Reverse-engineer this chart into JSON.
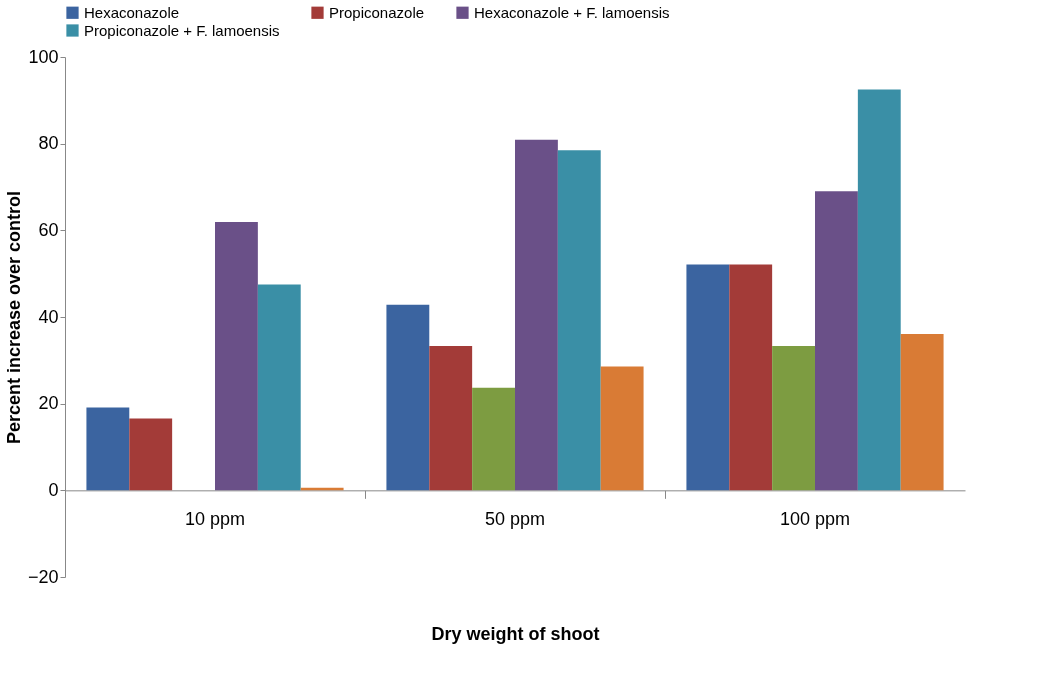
{
  "chart_data": {
    "type": "bar",
    "xlabel": "Dry weight of shoot",
    "ylabel": "Percent increase over control",
    "categories": [
      "10 ppm",
      "50 ppm",
      "100 ppm"
    ],
    "series": [
      {
        "name": "Hexaconazole",
        "color": "#3b64a0",
        "values": [
          19.1,
          42.8,
          52.1
        ]
      },
      {
        "name": "Propiconazole",
        "color": "#a33b38",
        "values": [
          16.6,
          33.3,
          52.1
        ]
      },
      {
        "color": "#7d9c41",
        "values": [
          0,
          23.7,
          33.3
        ]
      },
      {
        "name": "Hexaconazole + F. lamoensis",
        "color": "#6a5088",
        "values": [
          61.9,
          80.9,
          69.0
        ]
      },
      {
        "name": "Propiconazole + F. lamoensis",
        "color": "#3a8fa6",
        "values": [
          47.5,
          78.5,
          92.5
        ]
      },
      {
        "color": "#d97b35",
        "values": [
          0.6,
          28.6,
          36.1
        ]
      }
    ],
    "ylim": [
      -20,
      100
    ],
    "yticks": [
      -20,
      0,
      20,
      40,
      60,
      80,
      100
    ],
    "grid": false,
    "legend": "top"
  }
}
